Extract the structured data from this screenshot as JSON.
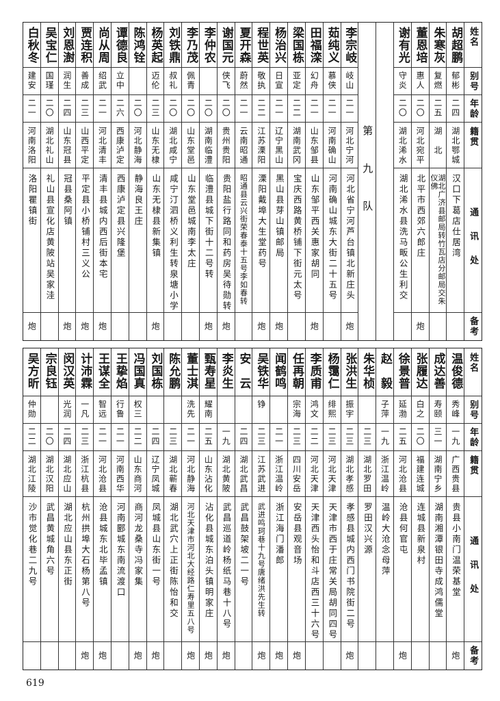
{
  "header": {
    "name": "姓名",
    "alias": "别号",
    "age": "年龄",
    "native": "籍贯",
    "address": "通讯处",
    "remarks": "备考"
  },
  "sections": [
    {
      "columns": [
        {
          "name": "胡超鹏",
          "alias": "郁彬",
          "age": "二四",
          "native": "湖北鄂城",
          "address": "汉口下葛店仕居湾",
          "remarks": ""
        },
        {
          "name": "朱寒灰",
          "alias": "复燃",
          "age": "二五",
          "native": "湖　北",
          "address": "湖北广济县邮局转竹瓦店分邮局交朱仪佛",
          "remarks": ""
        },
        {
          "name": "董恩培",
          "alias": "惠人",
          "age": "二〇",
          "native": "河北宛平",
          "address": "北平市西郊六郎庄",
          "remarks": "炮"
        },
        {
          "name": "谢有光",
          "alias": "守炎",
          "age": "二〇",
          "native": "湖北浠水",
          "address": "湖北浠水县洗马畈公生利交",
          "remarks": ""
        },
        {
          "type": "blank"
        },
        {
          "type": "team",
          "label": "第九队"
        },
        {
          "name": "李宗岐",
          "alias": "岐山",
          "age": "二一",
          "native": "河北宁河",
          "address": "河北省宁河芦台镇北新庄头",
          "remarks": "炮"
        },
        {
          "name": "茹纯义",
          "alias": "慕侠",
          "age": "二一",
          "native": "河南确山",
          "address": "河南确山城东大街二十五号",
          "remarks": ""
        },
        {
          "name": "田福滦",
          "alias": "幻舟",
          "age": "二一",
          "native": "山东邹县",
          "address": "山东邹平西关惠家胡同",
          "remarks": "炮"
        },
        {
          "name": "梁国栋",
          "alias": "亚定",
          "age": "二二",
          "native": "湖南武冈",
          "address": "宝庆西路黄桥铺下街元太号",
          "remarks": ""
        },
        {
          "name": "杨治兴",
          "alias": "日宣",
          "age": "二一",
          "native": "辽宁黑山",
          "address": "黑山县芽山镇邮局",
          "remarks": "炮"
        },
        {
          "name": "程世英",
          "alias": "敬执",
          "age": "二二",
          "native": "江苏溧阳",
          "address": "溧阳戴埠大生堂药号",
          "remarks": "炮"
        },
        {
          "name": "夏开森",
          "alias": "蔚然",
          "age": "二一",
          "native": "云南昭通",
          "address": "昭通县云兴街荣春泰十五号李如春转",
          "remarks": ""
        },
        {
          "name": "谢国元",
          "alias": "侠飞",
          "age": "二〇",
          "native": "贵州贵阳",
          "address": "贵阳盐行路同和药房吴待勋转",
          "remarks": "炮"
        },
        {
          "name": "李仲农",
          "alias": "",
          "age": "二〇",
          "native": "湖南临澧",
          "address": "临澧县城下街十二号转",
          "remarks": "炮"
        },
        {
          "name": "李乃茂",
          "alias": "佩青",
          "age": "二〇",
          "native": "山东堂邑",
          "address": "山东堂邑城南李太庄",
          "remarks": ""
        },
        {
          "name": "刘铁鼎",
          "alias": "叔礼",
          "age": "二〇",
          "native": "湖北咸宁",
          "address": "咸宁汀泗桥义利生转泉塘小学",
          "remarks": ""
        },
        {
          "name": "杨英起",
          "alias": "迈伦",
          "age": "二三",
          "native": "山东无棣",
          "address": "山东无棣县新集镇",
          "remarks": "炮"
        },
        {
          "name": "陈鸿铨",
          "alias": "",
          "age": "二〇",
          "native": "河北静海",
          "address": "静海良王庄",
          "remarks": ""
        },
        {
          "name": "谭德良",
          "alias": "立中",
          "age": "二六",
          "native": "西康泸定",
          "address": "西康泸定县兴隆堡",
          "remarks": ""
        },
        {
          "name": "尚从周",
          "alias": "绍武",
          "age": "二一",
          "native": "河北清丰",
          "address": "清丰县城内西后街本宅",
          "remarks": "炮"
        },
        {
          "name": "贾连积",
          "alias": "善成",
          "age": "二三",
          "native": "山西平定",
          "address": "平定县小桥铺村三义公",
          "remarks": "炮"
        },
        {
          "name": "刘恩澍",
          "alias": "润生",
          "age": "二四",
          "native": "山东冠县",
          "address": "冠县桑阿镇",
          "remarks": "炮"
        },
        {
          "name": "吴宝仁",
          "alias": "国瑾",
          "age": "二〇",
          "native": "湖北礼山",
          "address": "礼山县宣化店黄陂站吴家洼",
          "remarks": ""
        },
        {
          "name": "白秋冬",
          "alias": "建安",
          "age": "二一",
          "native": "河南洛阳",
          "address": "洛阳瞿镇街",
          "remarks": "炮"
        }
      ]
    },
    {
      "columns": [
        {
          "name": "温俊德",
          "alias": "秀峰",
          "age": "一九",
          "native": "广西贵县",
          "address": "贵县小南门温荣基堂",
          "remarks": "炮"
        },
        {
          "name": "成达善",
          "alias": "寿颐",
          "age": "三一",
          "native": "湖南宁乡",
          "address": "湖南湘潭银田寺成鸿儒堂",
          "remarks": ""
        },
        {
          "name": "张履达",
          "alias": "白之",
          "age": "二〇",
          "native": "福建连城",
          "address": "连城县新泉村",
          "remarks": ""
        },
        {
          "name": "徐景普",
          "alias": "延渤",
          "age": "二五",
          "native": "河北沧县",
          "address": "沧县何官屯",
          "remarks": "炮"
        },
        {
          "name": "赵　毅",
          "alias": "子萍",
          "age": "一九",
          "native": "浙江温岭",
          "address": "温岭大沧念母萍",
          "remarks": ""
        },
        {
          "name": "朱华桢",
          "alias": "",
          "age": "二三",
          "native": "湖北罗田",
          "address": "罗田汉兴源",
          "remarks": ""
        },
        {
          "name": "张洪生",
          "alias": "振宇",
          "age": "二三",
          "native": "湖北孝感",
          "address": "孝感县城内西门书院街二号",
          "remarks": "炮"
        },
        {
          "name": "杨霭仁",
          "alias": "绯熙",
          "age": "二三",
          "native": "河北天津",
          "address": "天津市西于庄常关局胡同四号",
          "remarks": ""
        },
        {
          "name": "李质甫",
          "alias": "鸿文",
          "age": "二二",
          "native": "河北天津",
          "address": "天津西头怡和斗店西三十六号",
          "remarks": ""
        },
        {
          "name": "任再朝",
          "alias": "宗海",
          "age": "二三",
          "native": "四川安岳",
          "address": "安岳县观音场",
          "remarks": "炮"
        },
        {
          "name": "闻鹤鸣",
          "alias": "",
          "age": "二一",
          "native": "浙江温岭",
          "address": "浙江海门潘郎",
          "remarks": "炮"
        },
        {
          "name": "吴铁华",
          "alias": "铮",
          "age": "二三",
          "native": "江苏武进",
          "address": "武进鸣珂巷十九号唐绪洪先生转",
          "remarks": "炮"
        },
        {
          "name": "安　云",
          "alias": "",
          "age": "二四",
          "native": "湖北武昌",
          "address": "武昌鼓架坡二一号",
          "remarks": ""
        },
        {
          "name": "李炎生",
          "alias": "",
          "age": "一九",
          "native": "湖北黄陂",
          "address": "武昌巡道岭杨纸马巷十八号",
          "remarks": "炮"
        },
        {
          "name": "甄寿星",
          "alias": "耀南",
          "age": "二五",
          "native": "山东沾化",
          "address": "沾化县城东泊头镇明家庄",
          "remarks": "炮"
        },
        {
          "name": "董士淇",
          "alias": "洗先",
          "age": "二一",
          "native": "河北静海",
          "address": "河北天津市河北大经路仁寿里五八号",
          "remarks": "炮"
        },
        {
          "name": "陈允鹏",
          "alias": "",
          "age": "二三",
          "native": "湖北蕲春",
          "address": "湖北武穴上正街陈怡和交",
          "remarks": ""
        },
        {
          "name": "刘国栋",
          "alias": "",
          "age": "二四",
          "native": "辽宁凤城",
          "address": "凤城县山东街一号",
          "remarks": "炮"
        },
        {
          "name": "冯国真",
          "alias": "权三",
          "age": "二二",
          "native": "山东商河",
          "address": "商河龙桑寺冯家集",
          "remarks": "炮"
        },
        {
          "name": "王挚焰",
          "alias": "行鲁",
          "age": "二一",
          "native": "河南西华",
          "address": "河南郾城东南流渡口",
          "remarks": ""
        },
        {
          "name": "王谋全",
          "alias": "智远",
          "age": "二一",
          "native": "河北沧县",
          "address": "沧县城东北毕孟镇",
          "remarks": "炮"
        },
        {
          "name": "计沛霖",
          "alias": "一凡",
          "age": "二三",
          "native": "浙江杭县",
          "address": "杭州拱埠大石杨第八号",
          "remarks": "炮"
        },
        {
          "name": "闵汉英",
          "alias": "光润",
          "age": "二四",
          "native": "湖北应山",
          "address": "湖北应山县东正街",
          "remarks": ""
        },
        {
          "name": "宗良钰",
          "alias": "",
          "age": "二〇",
          "native": "湖北汉阳",
          "address": "武昌黄城角六号",
          "remarks": ""
        },
        {
          "name": "吴方昕",
          "alias": "仲勋",
          "age": "二二",
          "native": "湖北江陵",
          "address": "沙市觉化巷二九号",
          "remarks": ""
        }
      ]
    }
  ],
  "page_number": "619"
}
